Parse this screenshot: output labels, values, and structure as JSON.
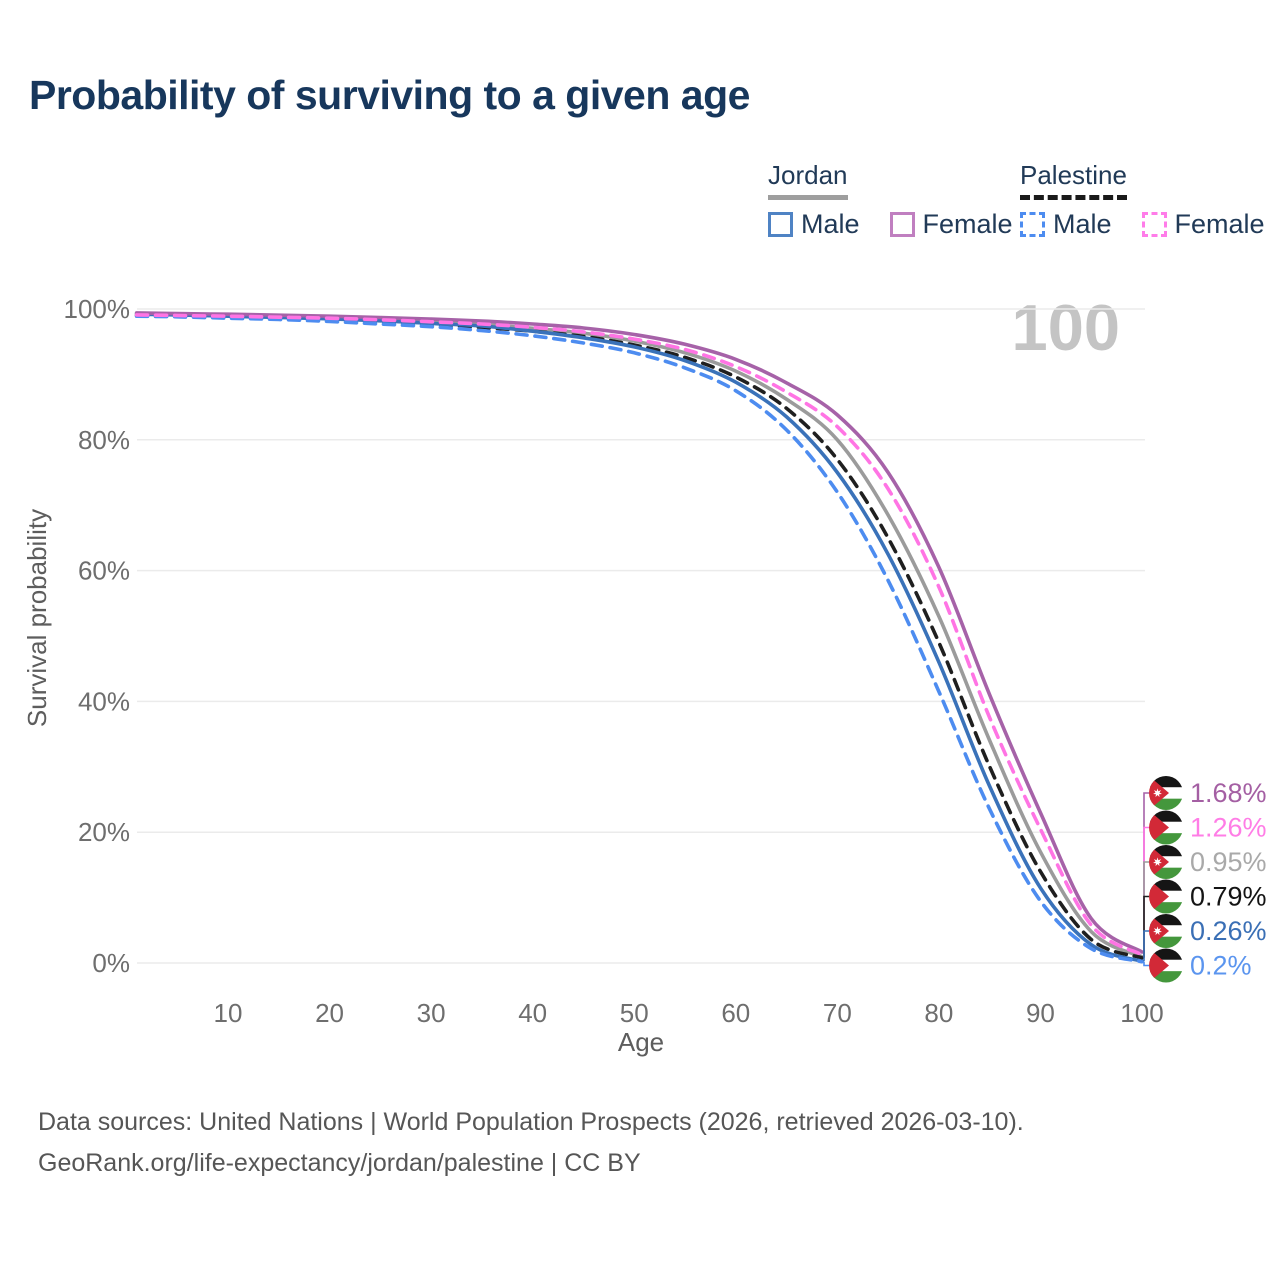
{
  "title": "Probability of surviving to a given age",
  "watermark": "100",
  "legend": {
    "groups": [
      {
        "id": "jordan",
        "label": "Jordan",
        "underline": "solid",
        "items": [
          {
            "id": "jordan-male",
            "label": "Male",
            "color": "#4f83c4",
            "dash": false
          },
          {
            "id": "jordan-female",
            "label": "Female",
            "color": "#c07fc0",
            "dash": false
          }
        ]
      },
      {
        "id": "palestine",
        "label": "Palestine",
        "underline": "dashed",
        "items": [
          {
            "id": "palestine-male",
            "label": "Male",
            "color": "#4d8cf0",
            "dash": true
          },
          {
            "id": "palestine-female",
            "label": "Female",
            "color": "#ff7ce9",
            "dash": true
          }
        ]
      }
    ]
  },
  "footer": {
    "line1": "Data sources: United Nations | World Population Prospects (2026, retrieved 2026-03-10).",
    "line2": "GeoRank.org/life-expectancy/jordan/palestine | CC BY"
  },
  "chart_data": {
    "type": "line",
    "title": "Probability of surviving to a given age",
    "xlabel": "Age",
    "ylabel": "Survival probability",
    "x_ticks": [
      10,
      20,
      30,
      40,
      50,
      60,
      70,
      80,
      90,
      100
    ],
    "y_ticks": [
      {
        "value": 0,
        "label": "0%"
      },
      {
        "value": 20,
        "label": "20%"
      },
      {
        "value": 40,
        "label": "40%"
      },
      {
        "value": 60,
        "label": "60%"
      },
      {
        "value": 80,
        "label": "80%"
      },
      {
        "value": 100,
        "label": "100%"
      }
    ],
    "xlim": [
      1,
      100
    ],
    "ylim": [
      0,
      100
    ],
    "grid": true,
    "legend_position": "top-right",
    "age_counter_watermark": "100",
    "ages": [
      1,
      5,
      10,
      15,
      20,
      25,
      30,
      35,
      40,
      45,
      50,
      55,
      60,
      65,
      70,
      75,
      80,
      85,
      90,
      95,
      100
    ],
    "series": [
      {
        "id": "jordan-female",
        "name": "Jordan Female",
        "country": "Jordan",
        "sex": "Female",
        "line": "solid",
        "color": "#a662a8",
        "end_label": "1.68%",
        "label_color": "#a45fa3",
        "flag": "jordan",
        "values": [
          99.4,
          99.3,
          99.2,
          99.05,
          98.9,
          98.7,
          98.45,
          98.15,
          97.7,
          97.1,
          96.1,
          94.6,
          92.3,
          88.7,
          83.8,
          75.0,
          60.5,
          41.0,
          23.0,
          6.8,
          1.68
        ]
      },
      {
        "id": "palestine-female",
        "name": "Palestine Female",
        "country": "Palestine",
        "sex": "Female",
        "line": "dashed",
        "color": "#ff74e4",
        "end_label": "1.26%",
        "label_color": "#ff7de6",
        "flag": "palestine",
        "values": [
          99.1,
          99.0,
          98.9,
          98.75,
          98.6,
          98.35,
          98.05,
          97.7,
          97.2,
          96.5,
          95.4,
          93.8,
          91.2,
          87.3,
          82.0,
          72.5,
          57.5,
          37.5,
          20.5,
          5.8,
          1.26
        ]
      },
      {
        "id": "jordan-total",
        "name": "Jordan",
        "country": "Jordan",
        "sex": "Both",
        "line": "solid",
        "color": "#9b9b9b",
        "end_label": "0.95%",
        "label_color": "#a9a9a9",
        "flag": "jordan",
        "values": [
          99.3,
          99.2,
          99.05,
          98.9,
          98.7,
          98.45,
          98.1,
          97.65,
          97.05,
          96.3,
          95.1,
          93.3,
          90.5,
          86.2,
          80.0,
          68.5,
          53.0,
          34.0,
          17.0,
          4.8,
          0.95
        ]
      },
      {
        "id": "palestine-total",
        "name": "Palestine",
        "country": "Palestine",
        "sex": "Both",
        "line": "dashed",
        "color": "#1f1f1f",
        "end_label": "0.79%",
        "label_color": "#141414",
        "flag": "palestine",
        "values": [
          99.0,
          98.9,
          98.75,
          98.6,
          98.4,
          98.1,
          97.7,
          97.2,
          96.6,
          95.8,
          94.5,
          92.6,
          89.6,
          84.8,
          77.0,
          65.0,
          49.0,
          30.0,
          14.0,
          3.6,
          0.79
        ]
      },
      {
        "id": "jordan-male",
        "name": "Jordan Male",
        "country": "Jordan",
        "sex": "Male",
        "line": "solid",
        "color": "#3a72b9",
        "end_label": "0.26%",
        "label_color": "#3a6fb5",
        "flag": "jordan",
        "values": [
          99.2,
          99.1,
          98.9,
          98.7,
          98.5,
          98.2,
          97.8,
          97.4,
          96.6,
          95.6,
          94.2,
          92.1,
          88.8,
          83.5,
          75.0,
          62.5,
          46.0,
          27.0,
          11.5,
          2.8,
          0.26
        ]
      },
      {
        "id": "palestine-male",
        "name": "Palestine Male",
        "country": "Palestine",
        "sex": "Male",
        "line": "dashed",
        "color": "#4d8cf0",
        "end_label": "0.2%",
        "label_color": "#5b95ef",
        "flag": "palestine",
        "values": [
          98.9,
          98.8,
          98.6,
          98.4,
          98.1,
          97.7,
          97.3,
          96.7,
          95.9,
          94.8,
          93.3,
          91.0,
          87.5,
          81.5,
          72.0,
          58.5,
          41.5,
          23.5,
          9.5,
          2.2,
          0.2
        ]
      }
    ],
    "flag_colors": {
      "black": "#151515",
      "white": "#ffffff",
      "green": "#44973c",
      "red": "#d22937",
      "star": "#ffffff"
    }
  }
}
